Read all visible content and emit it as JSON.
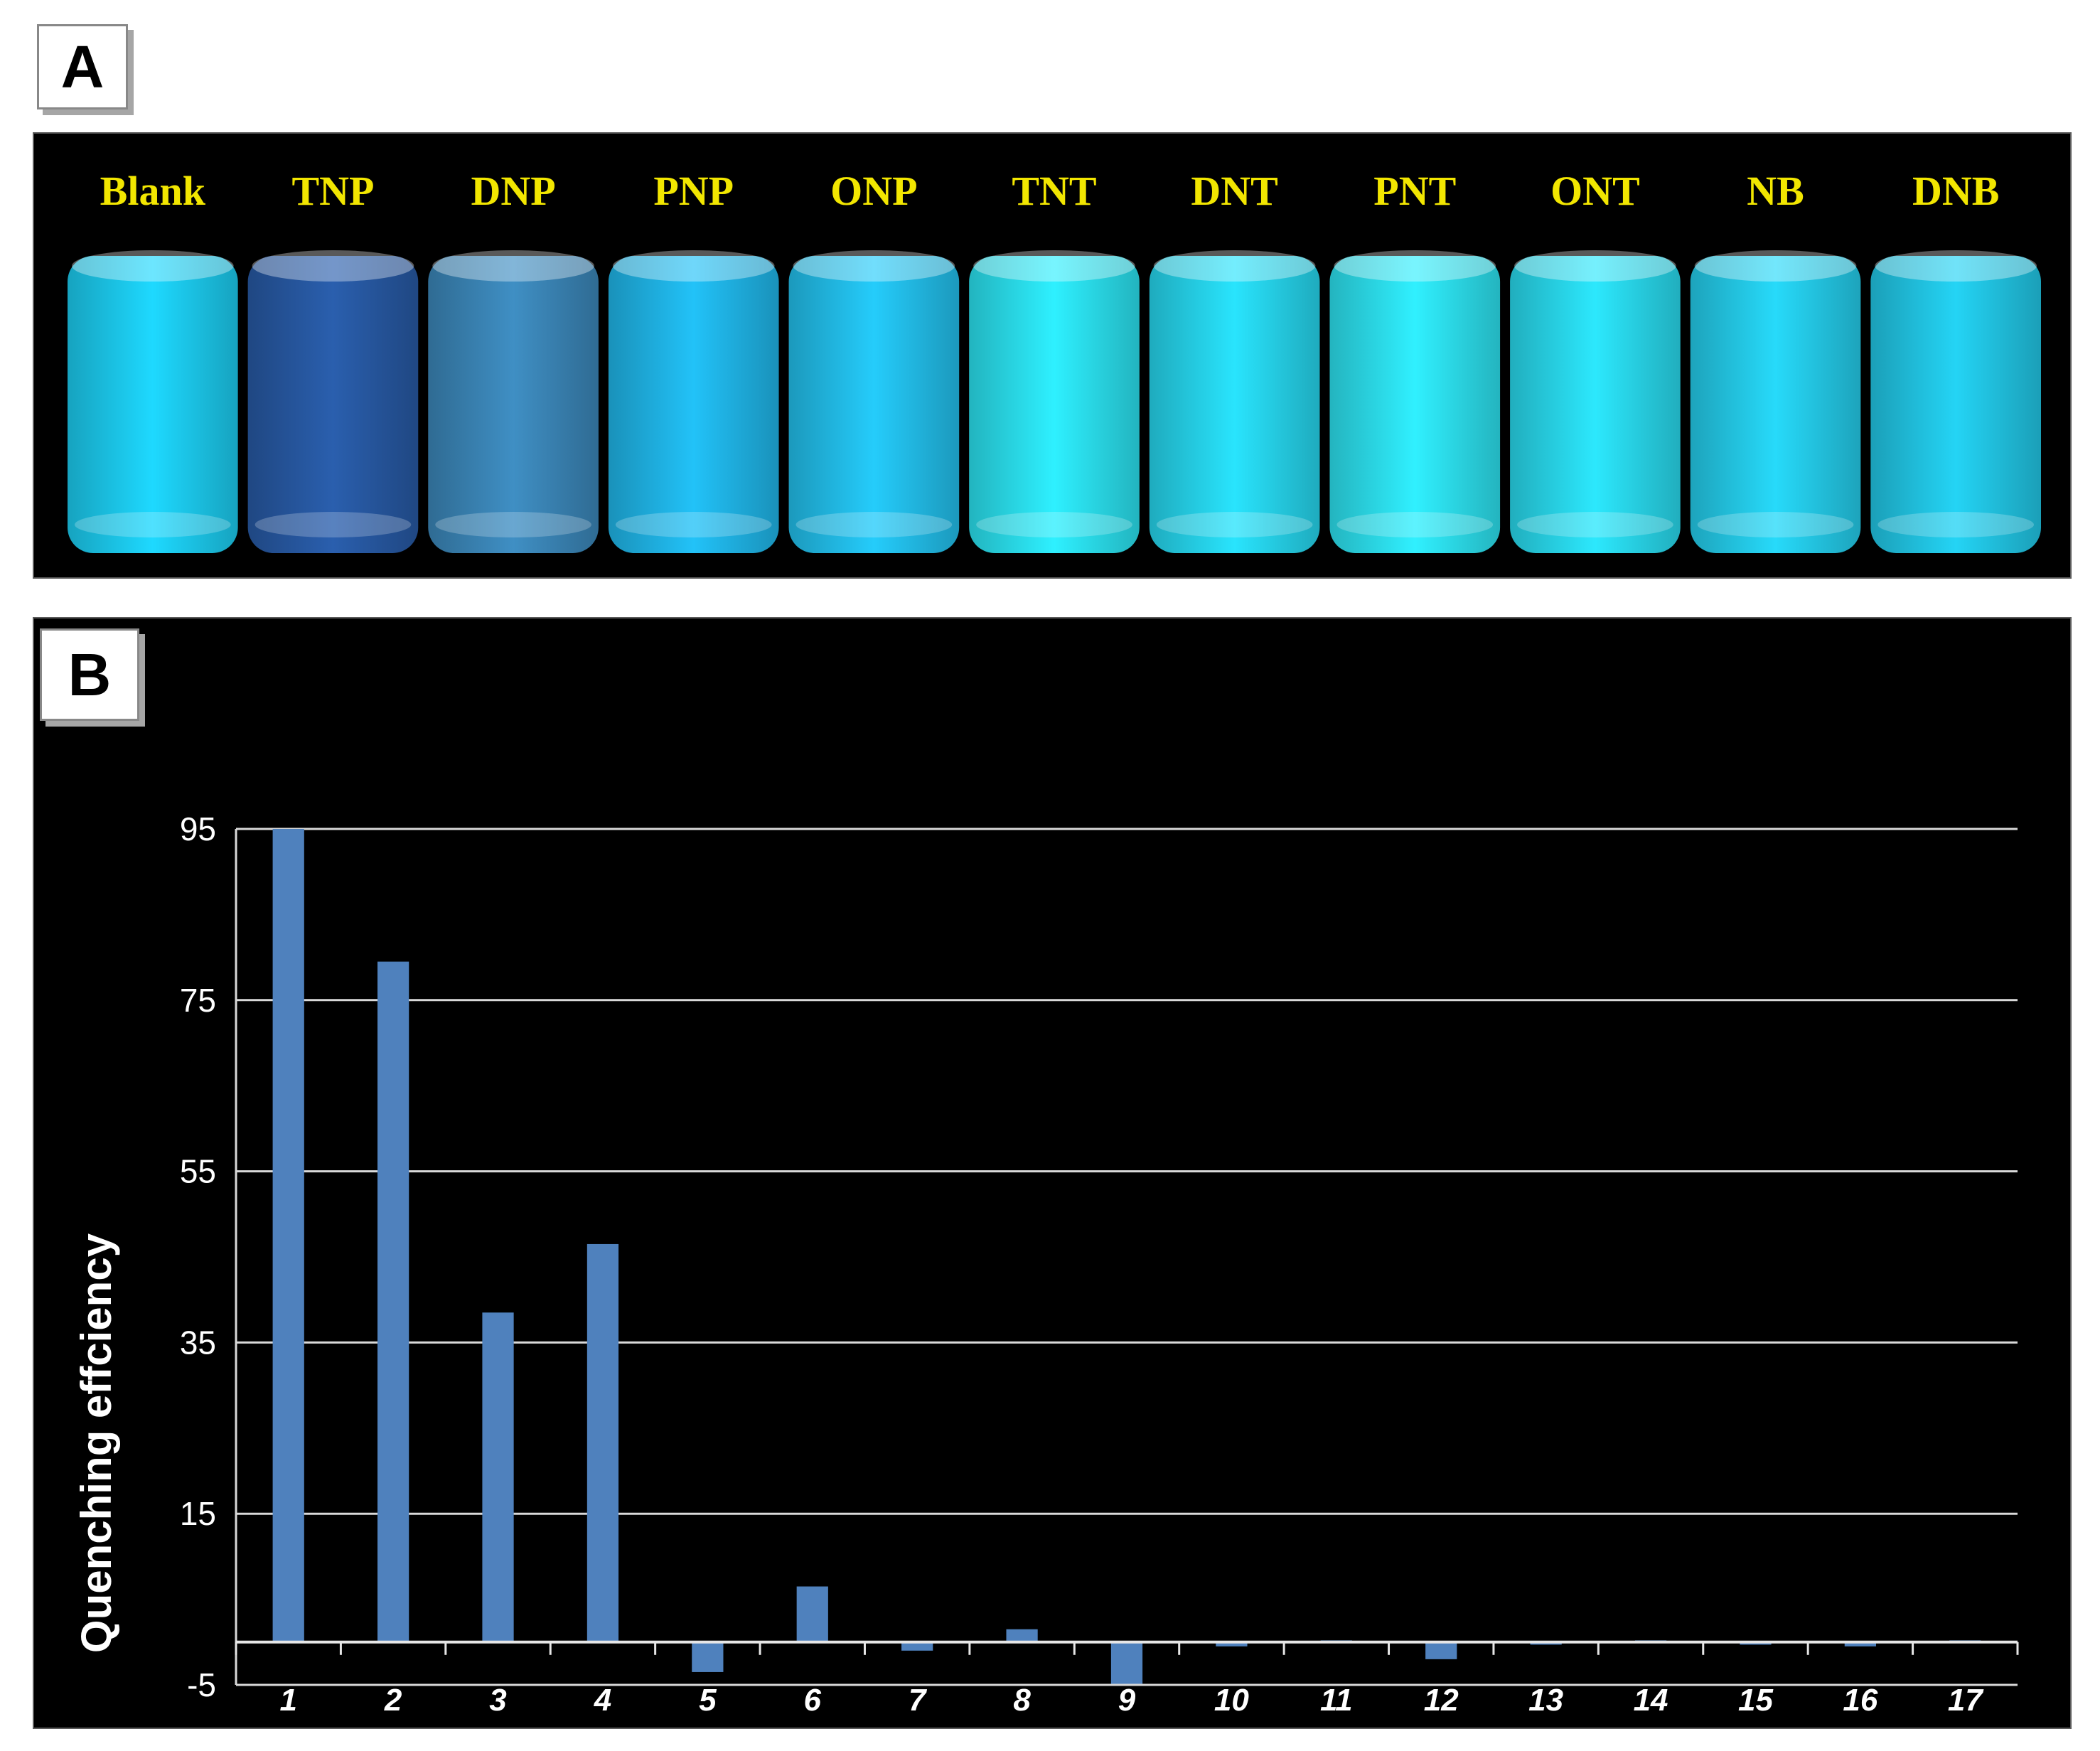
{
  "panels": {
    "a_label": "A",
    "b_label": "B"
  },
  "photo": {
    "samples": [
      {
        "name": "Blank",
        "color": "#1ed9ff"
      },
      {
        "name": "TNP",
        "color": "#2a5fae"
      },
      {
        "name": "DNP",
        "color": "#3f8fc4"
      },
      {
        "name": "PNP",
        "color": "#22c2f8"
      },
      {
        "name": "ONP",
        "color": "#25ccfb"
      },
      {
        "name": "TNT",
        "color": "#2ef0ff"
      },
      {
        "name": "DNT",
        "color": "#29e4fd"
      },
      {
        "name": "PNT",
        "color": "#30f0ff"
      },
      {
        "name": "ONT",
        "color": "#2ce8fd"
      },
      {
        "name": "NB",
        "color": "#27dafa"
      },
      {
        "name": "DNB",
        "color": "#24d4f5"
      }
    ],
    "label_color": "#f2e600"
  },
  "chart_data": {
    "type": "bar",
    "ylabel": "Quenching effciency",
    "xlabel": "",
    "title": "",
    "categories": [
      "1",
      "2",
      "3",
      "4",
      "5",
      "6",
      "7",
      "8",
      "9",
      "10",
      "11",
      "12",
      "13",
      "14",
      "15",
      "16",
      "17"
    ],
    "values": [
      95,
      79.5,
      38.5,
      46.5,
      -3.5,
      6.5,
      -1,
      1.5,
      -5,
      -0.5,
      0.2,
      -2,
      -0.3,
      0.2,
      -0.3,
      -0.5,
      0.2
    ],
    "ylim": [
      -5,
      95
    ],
    "yticks": [
      95,
      75,
      55,
      35,
      15,
      -5
    ],
    "ytick_labels": [
      "95",
      "75",
      "55",
      "35",
      "15",
      "-5"
    ],
    "grid": true,
    "bar_color": "#4f81bd",
    "background": "#000000",
    "legend": "none"
  }
}
